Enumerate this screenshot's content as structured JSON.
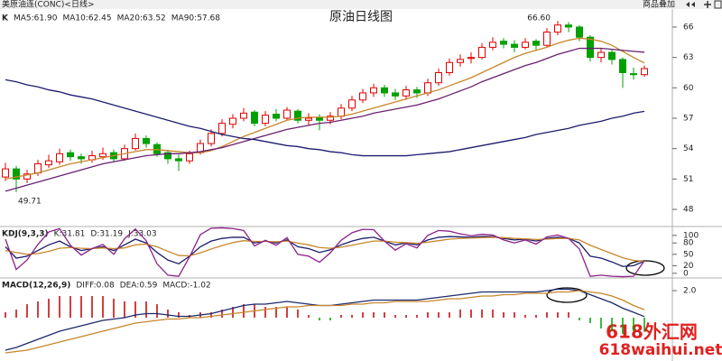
{
  "header": {
    "symbol": "美原油连(CONC)<日线>",
    "button": "商品叠加"
  },
  "watermark": {
    "line1": "618外汇网",
    "line2": "618waihui.net"
  },
  "chart_data": [
    {
      "type": "candlestick",
      "title": "原油日线图",
      "label": "K",
      "open": [
        51.2,
        52.0,
        51.0,
        51.6,
        52.4,
        52.7,
        53.6,
        53.2,
        52.9,
        53.2,
        53.6,
        53.0,
        54.0,
        55.0,
        54.4,
        53.6,
        53.0,
        52.8,
        53.6,
        54.5,
        55.5,
        56.4,
        57.0,
        57.6,
        56.5,
        57.4,
        57.0,
        57.7,
        56.8,
        57.1,
        56.8,
        57.2,
        58.0,
        58.8,
        59.5,
        60.0,
        59.5,
        59.2,
        59.8,
        59.5,
        60.5,
        61.5,
        62.5,
        62.9,
        63.0,
        64.0,
        64.6,
        64.3,
        64.0,
        64.6,
        64.2,
        65.5,
        66.2,
        66.0,
        65.0,
        63.0,
        63.5,
        62.8,
        61.4,
        61.3
      ],
      "high": [
        52.6,
        52.3,
        51.9,
        52.9,
        53.4,
        54.0,
        53.9,
        53.5,
        53.8,
        54.1,
        53.9,
        54.4,
        55.5,
        55.3,
        54.6,
        53.9,
        53.4,
        53.8,
        54.9,
        55.9,
        56.9,
        57.4,
        58.0,
        57.8,
        57.7,
        57.9,
        58.1,
        57.9,
        57.5,
        57.4,
        57.6,
        58.4,
        59.2,
        59.9,
        60.4,
        60.3,
        59.9,
        60.2,
        60.1,
        60.9,
        61.9,
        62.9,
        63.3,
        63.5,
        64.4,
        65.0,
        64.9,
        64.7,
        64.9,
        64.8,
        65.9,
        66.6,
        66.5,
        66.2,
        65.2,
        63.9,
        63.8,
        63.0,
        62.0,
        62.2
      ],
      "low": [
        50.8,
        49.71,
        50.6,
        51.3,
        52.1,
        52.4,
        52.8,
        52.5,
        52.6,
        52.9,
        52.7,
        52.8,
        53.8,
        54.1,
        53.2,
        52.5,
        51.8,
        52.5,
        53.4,
        54.2,
        55.2,
        56.0,
        56.7,
        56.2,
        56.2,
        56.7,
        56.8,
        56.5,
        56.3,
        55.8,
        56.4,
        56.9,
        57.7,
        58.5,
        59.1,
        59.1,
        58.8,
        58.8,
        59.0,
        59.2,
        60.2,
        61.2,
        62.1,
        62.4,
        62.8,
        63.7,
        63.9,
        63.5,
        63.8,
        63.7,
        64.0,
        65.2,
        65.5,
        64.6,
        62.6,
        62.5,
        62.3,
        60.0,
        60.8,
        61.1
      ],
      "close": [
        52.0,
        51.0,
        51.5,
        52.5,
        52.8,
        53.5,
        53.2,
        53.0,
        53.3,
        53.5,
        53.0,
        54.0,
        55.0,
        54.5,
        53.5,
        53.0,
        52.8,
        53.5,
        54.5,
        55.5,
        56.5,
        57.0,
        57.5,
        56.5,
        57.3,
        57.0,
        57.8,
        56.8,
        57.0,
        56.8,
        57.2,
        58.0,
        58.8,
        59.5,
        60.0,
        59.5,
        59.2,
        59.8,
        59.5,
        60.5,
        61.5,
        62.5,
        62.8,
        63.0,
        64.0,
        64.5,
        64.3,
        64.0,
        64.5,
        64.2,
        65.5,
        66.2,
        66.0,
        65.0,
        63.0,
        63.5,
        62.8,
        61.5,
        61.3,
        61.9
      ],
      "up_color": "#e00000",
      "down_color": "#00a000",
      "series": [
        {
          "name": "MA5:61.90",
          "color": "#333333"
        },
        {
          "name": "MA10:62.45",
          "color": "#c8862a",
          "values": [
            51.0,
            51.2,
            51.4,
            51.6,
            51.9,
            52.2,
            52.5,
            52.7,
            52.9,
            53.1,
            53.3,
            53.5,
            53.7,
            53.9,
            53.9,
            53.8,
            53.7,
            53.6,
            53.6,
            53.8,
            54.2,
            54.7,
            55.2,
            55.6,
            56.0,
            56.4,
            56.8,
            57.0,
            57.1,
            57.1,
            57.1,
            57.2,
            57.4,
            57.7,
            58.0,
            58.3,
            58.6,
            58.9,
            59.2,
            59.5,
            59.8,
            60.2,
            60.6,
            61.0,
            61.5,
            62.0,
            62.5,
            63.0,
            63.4,
            63.7,
            64.0,
            64.4,
            64.7,
            64.9,
            64.8,
            64.6,
            64.2,
            63.6,
            63.0,
            62.45
          ]
        },
        {
          "name": "MA20:63.52",
          "color": "#6a2070",
          "values": [
            49.8,
            50.1,
            50.4,
            50.7,
            51.0,
            51.3,
            51.6,
            51.9,
            52.2,
            52.5,
            52.7,
            52.9,
            53.1,
            53.3,
            53.4,
            53.5,
            53.5,
            53.6,
            53.7,
            53.9,
            54.1,
            54.4,
            54.7,
            55.0,
            55.3,
            55.6,
            55.9,
            56.1,
            56.3,
            56.5,
            56.6,
            56.8,
            57.0,
            57.2,
            57.5,
            57.7,
            57.9,
            58.1,
            58.3,
            58.6,
            58.9,
            59.3,
            59.7,
            60.1,
            60.6,
            61.0,
            61.4,
            61.8,
            62.2,
            62.5,
            62.9,
            63.3,
            63.6,
            63.9,
            63.9,
            63.9,
            63.8,
            63.7,
            63.6,
            63.52
          ]
        },
        {
          "name": "MA90:57.68",
          "color": "#1c1c6e",
          "values": [
            60.8,
            60.6,
            60.3,
            60.1,
            59.8,
            59.6,
            59.3,
            59.1,
            58.9,
            58.6,
            58.3,
            58.0,
            57.7,
            57.4,
            57.1,
            56.8,
            56.5,
            56.2,
            56.0,
            55.7,
            55.4,
            55.2,
            55.0,
            54.9,
            54.7,
            54.5,
            54.3,
            54.2,
            54.0,
            53.9,
            53.7,
            53.6,
            53.4,
            53.3,
            53.3,
            53.3,
            53.3,
            53.3,
            53.4,
            53.5,
            53.6,
            53.7,
            53.9,
            54.1,
            54.3,
            54.5,
            54.7,
            54.9,
            55.1,
            55.4,
            55.6,
            55.8,
            56.0,
            56.3,
            56.5,
            56.7,
            57.0,
            57.2,
            57.5,
            57.68
          ]
        }
      ],
      "annotations": [
        {
          "value": 66.6,
          "label": "66.60"
        },
        {
          "value": 49.71,
          "label": "49.71"
        }
      ],
      "ylim": [
        46.4,
        67.6
      ],
      "yticks": [
        48,
        51,
        54,
        57,
        60,
        63,
        66
      ]
    },
    {
      "type": "line",
      "label": "KDJ(9,3,3)",
      "series": [
        {
          "name": "K:31.81",
          "color": "#1c1c6e",
          "values": [
            70,
            40,
            45,
            60,
            75,
            85,
            70,
            60,
            65,
            70,
            60,
            75,
            90,
            80,
            55,
            35,
            25,
            45,
            70,
            85,
            92,
            95,
            95,
            80,
            85,
            80,
            88,
            70,
            65,
            55,
            62,
            75,
            85,
            92,
            95,
            85,
            75,
            80,
            75,
            88,
            95,
            97,
            96,
            95,
            97,
            97,
            92,
            88,
            90,
            85,
            92,
            95,
            92,
            80,
            45,
            40,
            30,
            18,
            20,
            31.81
          ]
        },
        {
          "name": "D:31.19",
          "color": "#c8862a",
          "values": [
            60,
            55,
            50,
            52,
            58,
            66,
            68,
            66,
            65,
            67,
            65,
            67,
            75,
            77,
            70,
            58,
            47,
            46,
            54,
            64,
            73,
            81,
            86,
            84,
            84,
            83,
            85,
            80,
            75,
            68,
            66,
            69,
            74,
            80,
            85,
            85,
            82,
            81,
            79,
            82,
            86,
            90,
            92,
            93,
            94,
            95,
            94,
            92,
            91,
            89,
            90,
            92,
            92,
            88,
            74,
            63,
            52,
            41,
            34,
            31.19
          ]
        },
        {
          "name": "J:33.03",
          "color": "#8a208a",
          "values": [
            90,
            10,
            35,
            76,
            109,
            118,
            74,
            48,
            65,
            76,
            50,
            91,
            117,
            86,
            25,
            -5,
            -8,
            43,
            102,
            119,
            120,
            118,
            113,
            72,
            87,
            74,
            94,
            50,
            45,
            29,
            54,
            87,
            107,
            116,
            115,
            85,
            61,
            78,
            67,
            100,
            113,
            111,
            104,
            99,
            103,
            101,
            88,
            80,
            88,
            77,
            96,
            101,
            92,
            64,
            -8,
            -5,
            -8,
            -9,
            -8,
            33.03
          ]
        }
      ],
      "ylim": [
        -10,
        121
      ],
      "yticks": [
        0,
        20,
        50,
        80,
        100
      ]
    },
    {
      "type": "macd",
      "label": "MACD(12,26,9)",
      "series": [
        {
          "name": "DIFF:0.08",
          "color": "#1c2a6e",
          "values": [
            -2.4,
            -2.2,
            -1.9,
            -1.6,
            -1.3,
            -1.0,
            -0.8,
            -0.6,
            -0.4,
            -0.2,
            -0.1,
            0.0,
            0.2,
            0.3,
            0.3,
            0.2,
            0.1,
            0.1,
            0.2,
            0.3,
            0.5,
            0.7,
            0.9,
            1.0,
            1.0,
            1.1,
            1.2,
            1.1,
            1.0,
            0.9,
            0.9,
            1.0,
            1.1,
            1.2,
            1.3,
            1.3,
            1.3,
            1.3,
            1.3,
            1.4,
            1.5,
            1.6,
            1.7,
            1.8,
            1.9,
            1.9,
            1.9,
            1.9,
            1.9,
            1.9,
            2.0,
            2.1,
            2.1,
            2.0,
            1.7,
            1.4,
            1.1,
            0.7,
            0.4,
            0.08
          ]
        },
        {
          "name": "DEA:0.59",
          "color": "#c8862a",
          "values": [
            -2.6,
            -2.5,
            -2.4,
            -2.2,
            -2.0,
            -1.8,
            -1.6,
            -1.4,
            -1.2,
            -1.0,
            -0.8,
            -0.6,
            -0.4,
            -0.3,
            -0.2,
            -0.1,
            -0.1,
            0.0,
            0.0,
            0.1,
            0.2,
            0.3,
            0.4,
            0.5,
            0.6,
            0.7,
            0.8,
            0.8,
            0.9,
            0.9,
            0.9,
            0.9,
            1.0,
            1.0,
            1.1,
            1.1,
            1.2,
            1.2,
            1.2,
            1.2,
            1.3,
            1.4,
            1.4,
            1.5,
            1.6,
            1.6,
            1.7,
            1.7,
            1.8,
            1.8,
            1.8,
            1.9,
            1.9,
            2.0,
            1.9,
            1.8,
            1.6,
            1.3,
            0.9,
            0.59
          ]
        }
      ],
      "histogram": {
        "name": "MACD:-1.02",
        "up_color": "#c00000",
        "down_color": "#00a000",
        "values": [
          0.4,
          0.6,
          1.0,
          1.2,
          1.4,
          1.6,
          1.6,
          1.6,
          1.6,
          1.6,
          1.4,
          1.2,
          1.2,
          1.2,
          1.0,
          0.6,
          0.4,
          0.2,
          0.4,
          0.4,
          0.6,
          0.8,
          1.0,
          1.0,
          0.8,
          0.8,
          0.8,
          0.6,
          0.2,
          -0.2,
          -0.2,
          0.2,
          0.2,
          0.4,
          0.4,
          0.4,
          0.2,
          0.2,
          0.2,
          0.4,
          0.4,
          0.4,
          0.6,
          0.6,
          0.6,
          0.6,
          0.4,
          0.4,
          0.2,
          0.2,
          0.4,
          0.4,
          0.4,
          -0.2,
          -0.4,
          -0.8,
          -1.0,
          -1.2,
          -1.0,
          -1.02
        ]
      },
      "ylim": [
        -3.07,
        2.87
      ],
      "yticks": [
        {
          "value": 2,
          "label": "2.0"
        }
      ]
    }
  ]
}
